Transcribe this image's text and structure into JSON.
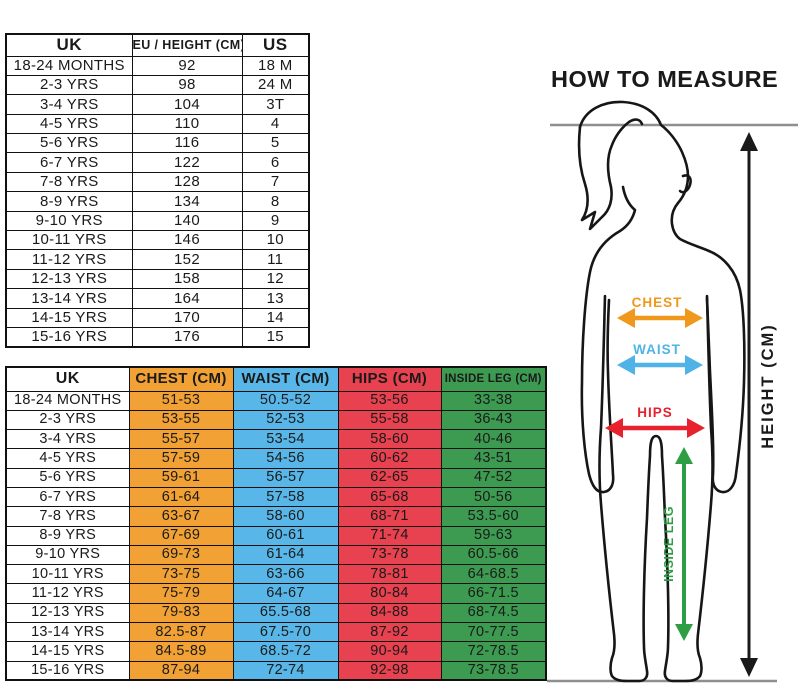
{
  "size_table": {
    "headers": [
      "UK",
      "EU / HEIGHT (CM)",
      "US"
    ],
    "rows": [
      [
        "18-24 MONTHS",
        "92",
        "18 M"
      ],
      [
        "2-3 YRS",
        "98",
        "24 M"
      ],
      [
        "3-4 YRS",
        "104",
        "3T"
      ],
      [
        "4-5 YRS",
        "110",
        "4"
      ],
      [
        "5-6 YRS",
        "116",
        "5"
      ],
      [
        "6-7 YRS",
        "122",
        "6"
      ],
      [
        "7-8 YRS",
        "128",
        "7"
      ],
      [
        "8-9 YRS",
        "134",
        "8"
      ],
      [
        "9-10 YRS",
        "140",
        "9"
      ],
      [
        "10-11 YRS",
        "146",
        "10"
      ],
      [
        "11-12 YRS",
        "152",
        "11"
      ],
      [
        "12-13 YRS",
        "158",
        "12"
      ],
      [
        "13-14 YRS",
        "164",
        "13"
      ],
      [
        "14-15 YRS",
        "170",
        "14"
      ],
      [
        "15-16 YRS",
        "176",
        "15"
      ]
    ]
  },
  "measurement_table": {
    "headers": [
      "UK",
      "CHEST (CM)",
      "WAIST (CM)",
      "HIPS (CM)",
      "INSIDE LEG (CM)"
    ],
    "column_colors": [
      "",
      "#F2A134",
      "#58B7E8",
      "#E8414F",
      "#3C9B51"
    ],
    "rows": [
      [
        "18-24 MONTHS",
        "51-53",
        "50.5-52",
        "53-56",
        "33-38"
      ],
      [
        "2-3 YRS",
        "53-55",
        "52-53",
        "55-58",
        "36-43"
      ],
      [
        "3-4 YRS",
        "55-57",
        "53-54",
        "58-60",
        "40-46"
      ],
      [
        "4-5 YRS",
        "57-59",
        "54-56",
        "60-62",
        "43-51"
      ],
      [
        "5-6 YRS",
        "59-61",
        "56-57",
        "62-65",
        "47-52"
      ],
      [
        "6-7 YRS",
        "61-64",
        "57-58",
        "65-68",
        "50-56"
      ],
      [
        "7-8 YRS",
        "63-67",
        "58-60",
        "68-71",
        "53.5-60"
      ],
      [
        "8-9 YRS",
        "67-69",
        "60-61",
        "71-74",
        "59-63"
      ],
      [
        "9-10 YRS",
        "69-73",
        "61-64",
        "73-78",
        "60.5-66"
      ],
      [
        "10-11 YRS",
        "73-75",
        "63-66",
        "78-81",
        "64-68.5"
      ],
      [
        "11-12 YRS",
        "75-79",
        "64-67",
        "80-84",
        "66-71.5"
      ],
      [
        "12-13 YRS",
        "79-83",
        "65.5-68",
        "84-88",
        "68-74.5"
      ],
      [
        "13-14 YRS",
        "82.5-87",
        "67.5-70",
        "87-92",
        "70-77.5"
      ],
      [
        "14-15 YRS",
        "84.5-89",
        "68.5-72",
        "90-94",
        "72-78.5"
      ],
      [
        "15-16 YRS",
        "87-94",
        "72-74",
        "92-98",
        "73-78.5"
      ]
    ]
  },
  "diagram": {
    "title": "HOW TO MEASURE",
    "guide_line_color": "#8F8F8F",
    "labels": {
      "chest": {
        "text": "CHEST",
        "color": "#F0981B"
      },
      "waist": {
        "text": "WAIST",
        "color": "#4FB3E8"
      },
      "hips": {
        "text": "HIPS",
        "color": "#E8212F"
      },
      "inside_leg": {
        "text": "INSIDE LEG",
        "color": "#2E9E44"
      },
      "height": {
        "text": "HEIGHT (CM)",
        "color": "#1A1A1A"
      }
    }
  }
}
